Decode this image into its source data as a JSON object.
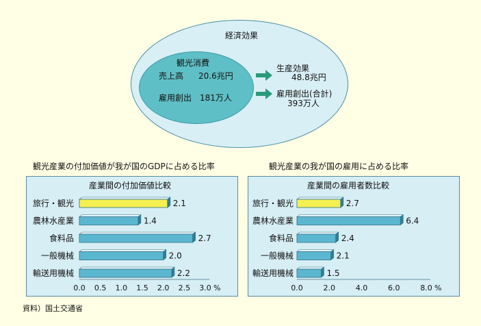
{
  "diagram": {
    "outer_title": "経済効果",
    "inner_title": "観光消費",
    "sales_label": "売上高",
    "sales_value": "20.6兆円",
    "employment_label": "雇用創出",
    "employment_value": "181万人",
    "production_label": "生産効果",
    "production_value": "48.8兆円",
    "total_employment_label": "雇用創出(合計)",
    "total_employment_value": "393万人"
  },
  "colors": {
    "background": "#FFFFE5",
    "outer_ellipse": "#D8EFF5",
    "inner_ellipse": "#5FBFC6",
    "arrow": "#2A9A7A",
    "bar": "#5BB7D0",
    "highlight_bar": "#F5F050",
    "chart_bg": "#D6EEF4"
  },
  "chart_data": [
    {
      "type": "bar",
      "title": "観光産業の付加価値が我が国のGDPに占める比率",
      "subtitle": "産業間の付加価値比較",
      "categories": [
        "旅行・観光",
        "農林水産業",
        "食料品",
        "一般機械",
        "輸送用機械"
      ],
      "values": [
        2.1,
        1.4,
        2.7,
        2.0,
        2.2
      ],
      "value_labels": [
        "2.1",
        "1.4",
        "2.7",
        "2.0",
        "2.2"
      ],
      "highlight_index": 0,
      "xlim": [
        0,
        3.0
      ],
      "ticks": [
        "0.0",
        "0.5",
        "1.0",
        "1.5",
        "2.0",
        "2.5",
        "3.0"
      ],
      "tick_values": [
        0,
        0.5,
        1.0,
        1.5,
        2.0,
        2.5,
        3.0
      ],
      "unit": "%"
    },
    {
      "type": "bar",
      "title": "観光産業の我が国の雇用に占める比率",
      "subtitle": "産業間の雇用者数比較",
      "categories": [
        "旅行・観光",
        "農林水産業",
        "食料品",
        "一般機械",
        "輸送用機械"
      ],
      "values": [
        2.7,
        6.4,
        2.4,
        2.1,
        1.5
      ],
      "value_labels": [
        "2.7",
        "6.4",
        "2.4",
        "2.1",
        "1.5"
      ],
      "highlight_index": 0,
      "xlim": [
        0,
        8.0
      ],
      "ticks": [
        "0.0",
        "2.0",
        "4.0",
        "6.0",
        "8.0"
      ],
      "tick_values": [
        0,
        2.0,
        4.0,
        6.0,
        8.0
      ],
      "unit": "%"
    }
  ],
  "source": "資料）国土交通省"
}
